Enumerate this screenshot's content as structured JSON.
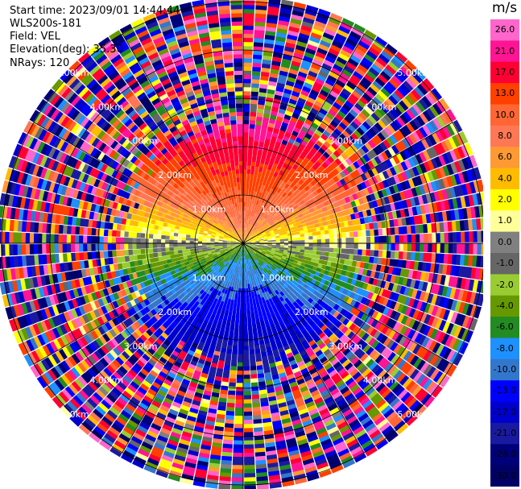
{
  "info": {
    "start_time": "Start time: 2023/09/01 14:44:44",
    "instrument": "WLS200s-181",
    "field": "Field: VEL",
    "elevation": "Elevation(deg): 35.30",
    "nrays": "NRays: 120"
  },
  "chart_data": {
    "type": "heatmap",
    "projection": "polar (PPI)",
    "nrays": 120,
    "range_rings_km": [
      1,
      2,
      3,
      4,
      5
    ],
    "ring_label_text": "km",
    "colorbar": {
      "unit": "m/s",
      "ticks": [
        "26.0",
        "21.0",
        "17.0",
        "13.0",
        "10.0",
        "8.0",
        "6.0",
        "4.0",
        "2.0",
        "1.0",
        "0.0",
        "-1.0",
        "-2.0",
        "-4.0",
        "-6.0",
        "-8.0",
        "-10.0",
        "-13.0",
        "-17.0",
        "-21.0",
        "-26.0",
        "-30.0"
      ],
      "colors": [
        "#ff66cc",
        "#ff1493",
        "#ff0033",
        "#ff4000",
        "#ff6633",
        "#ff7755",
        "#ff9933",
        "#ffbb00",
        "#ffff00",
        "#ffff99",
        "#808080",
        "#666666",
        "#99cc33",
        "#669900",
        "#228b22",
        "#1e90ff",
        "#3377cc",
        "#0000ff",
        "#0000cd",
        "#1a1aa0",
        "#00007a",
        "#000066"
      ]
    }
  }
}
